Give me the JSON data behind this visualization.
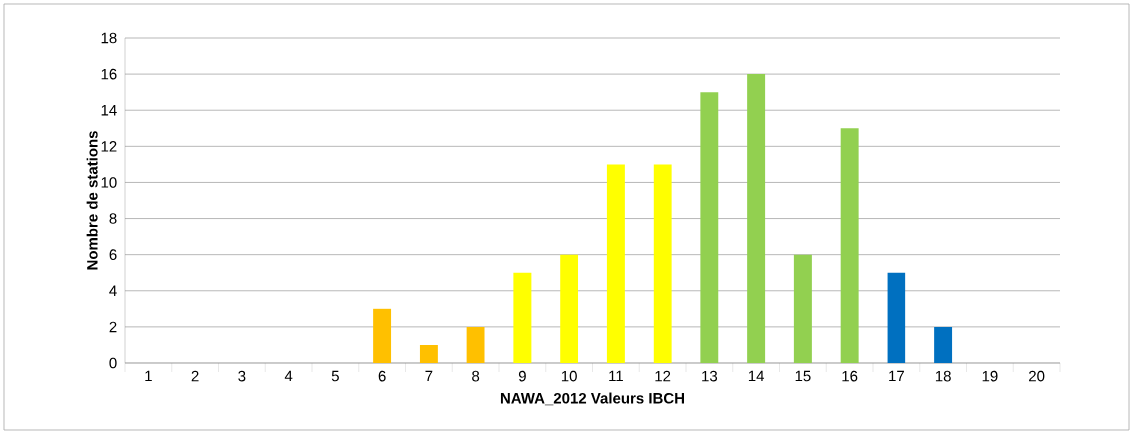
{
  "chart_data": {
    "type": "bar",
    "xlabel": "NAWA_2012 Valeurs IBCH",
    "ylabel": "Nombre de stations",
    "categories": [
      "1",
      "2",
      "3",
      "4",
      "5",
      "6",
      "7",
      "8",
      "9",
      "10",
      "11",
      "12",
      "13",
      "14",
      "15",
      "16",
      "17",
      "18",
      "19",
      "20"
    ],
    "values": [
      0,
      0,
      0,
      0,
      0,
      3,
      1,
      2,
      5,
      6,
      11,
      11,
      15,
      16,
      6,
      13,
      5,
      2,
      0,
      0
    ],
    "colors": [
      "#ffc000",
      "#ffc000",
      "#ffc000",
      "#ffc000",
      "#ffc000",
      "#ffc000",
      "#ffc000",
      "#ffc000",
      "#ffff00",
      "#ffff00",
      "#ffff00",
      "#ffff00",
      "#92d050",
      "#92d050",
      "#92d050",
      "#92d050",
      "#0070c0",
      "#0070c0",
      "#0070c0",
      "#0070c0"
    ],
    "ylim": [
      0,
      18
    ],
    "yticks": [
      0,
      2,
      4,
      6,
      8,
      10,
      12,
      14,
      16,
      18
    ],
    "grid": "y"
  }
}
